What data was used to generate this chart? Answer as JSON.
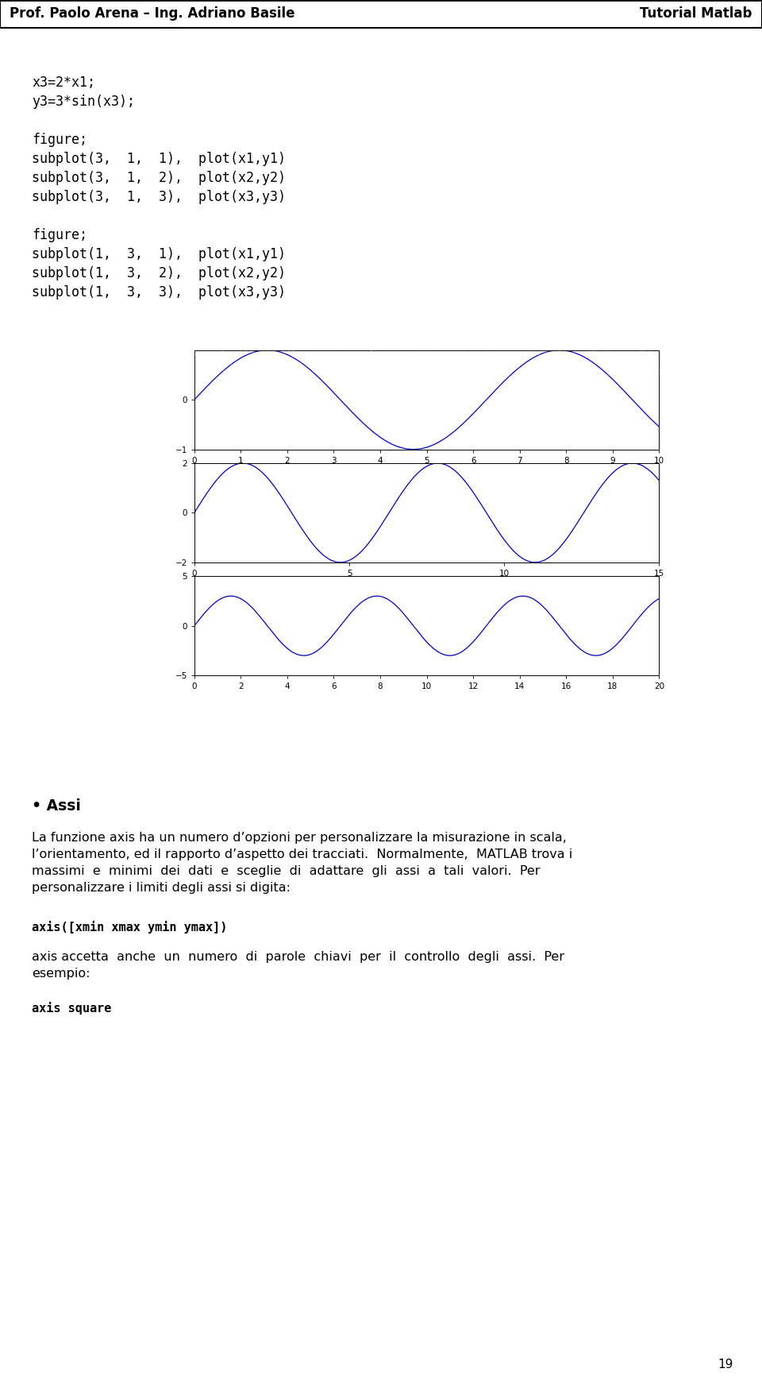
{
  "header_left": "Prof. Paolo Arena – Ing. Adriano Basile",
  "header_right": "Tutorial Matlab",
  "page_number": "19",
  "code_lines1": [
    "x3=2*x1;",
    "y3=3*sin(x3);",
    "",
    "figure;",
    "subplot(3,  1,  1),  plot(x1,y1)",
    "subplot(3,  1,  2),  plot(x2,y2)",
    "subplot(3,  1,  3),  plot(x3,y3)",
    "",
    "figure;",
    "subplot(1,  3,  1),  plot(x1,y1)",
    "subplot(1,  3,  2),  plot(x2,y2)",
    "subplot(1,  3,  3),  plot(x3,y3)"
  ],
  "section_title": "• Assi",
  "body_text1_lines": [
    "La funzione axis ha un numero d’opzioni per personalizzare la misurazione in scala,",
    "l’orientamento, ed il rapporto d’aspetto dei tracciati.  Normalmente,  MATLAB trova i",
    "massimi  e  minimi  dei  dati  e  sceglie  di  adattare  gli  assi  a  tali  valori.  Per",
    "personalizzare i limiti degli assi si digita:"
  ],
  "code_block2": "axis([xmin xmax ymin ymax])",
  "body_text2_lines": [
    "axis accetta  anche  un  numero  di  parole  chiavi  per  il  controllo  degli  assi.  Per",
    "esempio:"
  ],
  "code_block3": "axis square",
  "plot_line_color": "#0000CC",
  "noise_bg_color": "#0d0d20",
  "background_color": "#ffffff"
}
